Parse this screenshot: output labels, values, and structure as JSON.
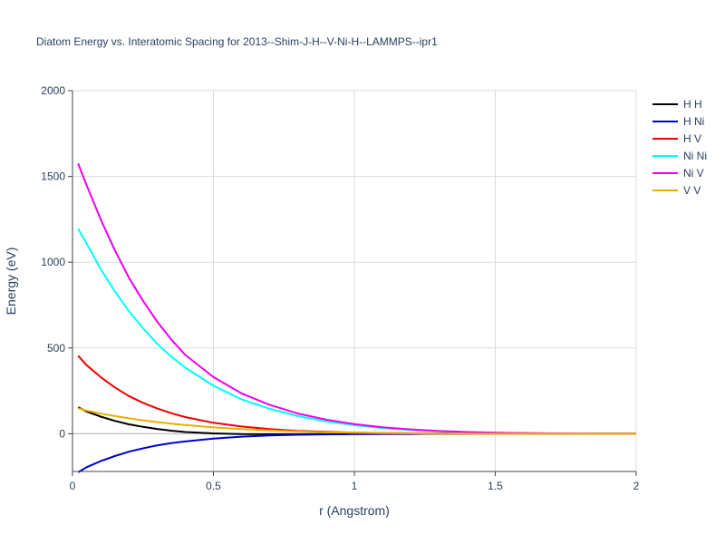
{
  "chart_data": {
    "type": "line",
    "title": "Diatom Energy vs. Interatomic Spacing for 2013--Shim-J-H--V-Ni-H--LAMMPS--ipr1",
    "xlabel": "r (Angstrom)",
    "ylabel": "Energy (eV)",
    "xlim": [
      0,
      2
    ],
    "ylim": [
      -220,
      2000
    ],
    "xticks": [
      "0",
      "0.5",
      "1",
      "1.5",
      "2"
    ],
    "yticks": [
      "0",
      "500",
      "1000",
      "1500",
      "2000"
    ],
    "x_tick_values": [
      0,
      0.5,
      1,
      1.5,
      2
    ],
    "y_tick_values": [
      0,
      500,
      1000,
      1500,
      2000
    ],
    "grid": true,
    "legend_position": "top-right",
    "x": [
      0.02,
      0.05,
      0.1,
      0.15,
      0.2,
      0.25,
      0.3,
      0.35,
      0.4,
      0.5,
      0.6,
      0.7,
      0.8,
      0.9,
      1.0,
      1.1,
      1.2,
      1.3,
      1.4,
      1.5,
      1.6,
      1.7,
      1.8,
      1.9,
      2.0
    ],
    "series": [
      {
        "name": "H H",
        "color": "#000000",
        "values": [
          155,
          130,
          100,
          75,
          55,
          40,
          28,
          18,
          10,
          2,
          -2,
          -3,
          -3,
          -2,
          -2,
          -1,
          -1,
          0,
          0,
          0,
          0,
          0,
          0,
          0,
          0
        ]
      },
      {
        "name": "H Ni",
        "color": "#0000cd",
        "values": [
          -225,
          -195,
          -160,
          -130,
          -105,
          -85,
          -68,
          -55,
          -45,
          -28,
          -17,
          -10,
          -6,
          -4,
          -2,
          -1,
          -1,
          0,
          0,
          0,
          0,
          0,
          0,
          0,
          0
        ]
      },
      {
        "name": "H V",
        "color": "#ee0000",
        "values": [
          455,
          400,
          330,
          270,
          220,
          180,
          148,
          120,
          97,
          64,
          42,
          27,
          17,
          11,
          7,
          4,
          3,
          2,
          1,
          1,
          0,
          0,
          0,
          0,
          0
        ]
      },
      {
        "name": "Ni Ni",
        "color": "#00ffff",
        "values": [
          1195,
          1110,
          960,
          830,
          715,
          615,
          525,
          450,
          385,
          280,
          200,
          145,
          103,
          72,
          50,
          33,
          22,
          14,
          9,
          5,
          3,
          2,
          1,
          0,
          0
        ]
      },
      {
        "name": "Ni V",
        "color": "#ee00ee",
        "values": [
          1575,
          1450,
          1250,
          1070,
          910,
          775,
          655,
          550,
          460,
          330,
          235,
          168,
          118,
          82,
          56,
          38,
          25,
          16,
          10,
          6,
          4,
          2,
          1,
          0,
          0
        ]
      },
      {
        "name": "V V",
        "color": "#eab000",
        "values": [
          148,
          135,
          118,
          103,
          90,
          78,
          68,
          59,
          51,
          37,
          27,
          19,
          13,
          9,
          6,
          4,
          2,
          1,
          1,
          0,
          0,
          0,
          0,
          0,
          0
        ]
      }
    ]
  }
}
